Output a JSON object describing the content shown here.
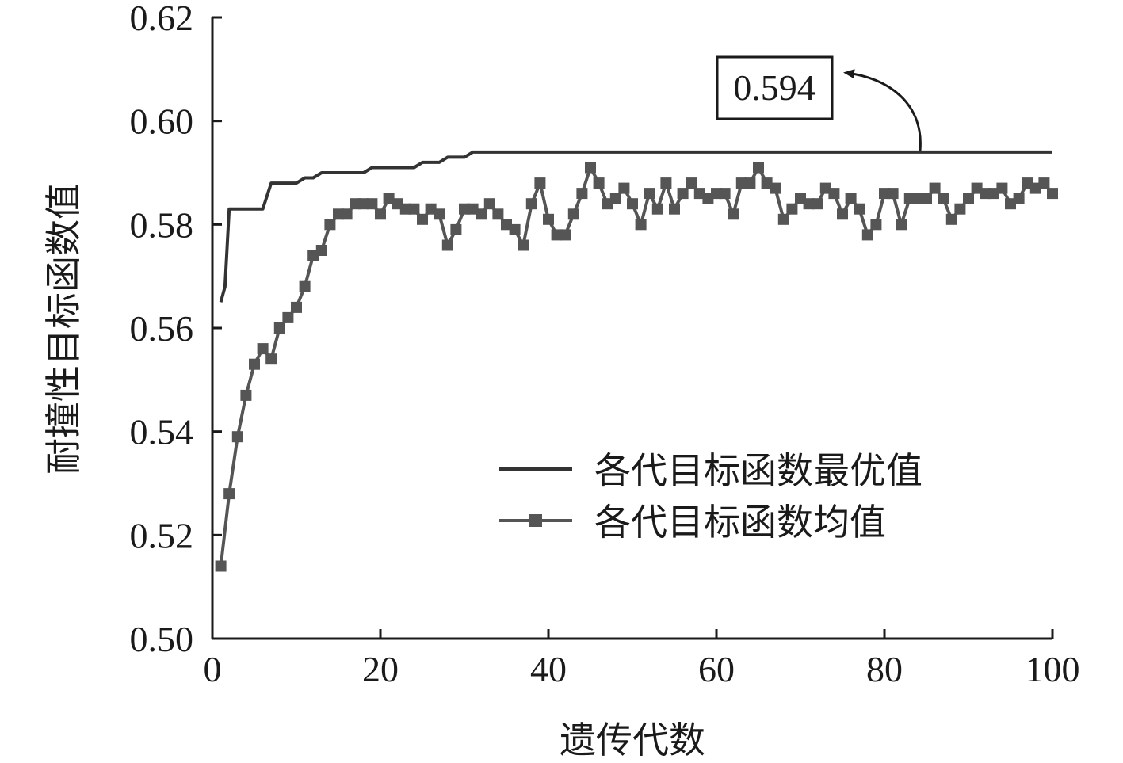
{
  "chart_data": {
    "type": "line",
    "xlabel": "遗传代数",
    "ylabel": "耐撞性目标函数值",
    "xlim": [
      0,
      100
    ],
    "ylim": [
      0.5,
      0.62
    ],
    "xticks": [
      "0",
      "20",
      "40",
      "60",
      "80",
      "100"
    ],
    "yticks": [
      "0.50",
      "0.52",
      "0.54",
      "0.56",
      "0.58",
      "0.60",
      "0.62"
    ],
    "grid": false,
    "legend_position": "lower-right",
    "colors": {
      "best": "#333333",
      "mean": "#555555"
    },
    "series": [
      {
        "name": "各代目标函数最优值",
        "marker": "none",
        "x": [
          1,
          1.5,
          2,
          3,
          4,
          5,
          6,
          7,
          8,
          9,
          10,
          11,
          12,
          13,
          14,
          15,
          16,
          17,
          18,
          19,
          20,
          21,
          22,
          23,
          24,
          25,
          26,
          27,
          28,
          29,
          30,
          31,
          35,
          40,
          50,
          60,
          70,
          80,
          90,
          100
        ],
        "values": [
          0.565,
          0.568,
          0.583,
          0.583,
          0.583,
          0.583,
          0.583,
          0.588,
          0.588,
          0.588,
          0.588,
          0.589,
          0.589,
          0.59,
          0.59,
          0.59,
          0.59,
          0.59,
          0.59,
          0.591,
          0.591,
          0.591,
          0.591,
          0.591,
          0.591,
          0.592,
          0.592,
          0.592,
          0.593,
          0.593,
          0.593,
          0.594,
          0.594,
          0.594,
          0.594,
          0.594,
          0.594,
          0.594,
          0.594,
          0.594
        ]
      },
      {
        "name": "各代目标函数均值",
        "marker": "square",
        "x": [
          1,
          2,
          3,
          4,
          5,
          6,
          7,
          8,
          9,
          10,
          11,
          12,
          13,
          14,
          15,
          16,
          17,
          18,
          19,
          20,
          21,
          22,
          23,
          24,
          25,
          26,
          27,
          28,
          29,
          30,
          31,
          32,
          33,
          34,
          35,
          36,
          37,
          38,
          39,
          40,
          41,
          42,
          43,
          44,
          45,
          46,
          47,
          48,
          49,
          50,
          51,
          52,
          53,
          54,
          55,
          56,
          57,
          58,
          59,
          60,
          61,
          62,
          63,
          64,
          65,
          66,
          67,
          68,
          69,
          70,
          71,
          72,
          73,
          74,
          75,
          76,
          77,
          78,
          79,
          80,
          81,
          82,
          83,
          84,
          85,
          86,
          87,
          88,
          89,
          90,
          91,
          92,
          93,
          94,
          95,
          96,
          97,
          98,
          99,
          100
        ],
        "values": [
          0.514,
          0.528,
          0.539,
          0.547,
          0.553,
          0.556,
          0.554,
          0.56,
          0.562,
          0.564,
          0.568,
          0.574,
          0.575,
          0.58,
          0.582,
          0.582,
          0.584,
          0.584,
          0.584,
          0.582,
          0.585,
          0.584,
          0.583,
          0.583,
          0.581,
          0.583,
          0.582,
          0.576,
          0.579,
          0.583,
          0.583,
          0.582,
          0.584,
          0.582,
          0.58,
          0.579,
          0.576,
          0.584,
          0.588,
          0.581,
          0.578,
          0.578,
          0.582,
          0.586,
          0.591,
          0.588,
          0.584,
          0.585,
          0.587,
          0.584,
          0.58,
          0.586,
          0.583,
          0.588,
          0.583,
          0.586,
          0.588,
          0.586,
          0.585,
          0.586,
          0.586,
          0.582,
          0.588,
          0.588,
          0.591,
          0.588,
          0.587,
          0.581,
          0.583,
          0.585,
          0.584,
          0.584,
          0.587,
          0.586,
          0.582,
          0.585,
          0.583,
          0.578,
          0.58,
          0.586,
          0.586,
          0.58,
          0.585,
          0.585,
          0.585,
          0.587,
          0.585,
          0.581,
          0.583,
          0.585,
          0.587,
          0.586,
          0.586,
          0.587,
          0.584,
          0.585,
          0.588,
          0.587,
          0.588,
          0.586
        ]
      }
    ],
    "annotation": {
      "text": "0.594",
      "x": 85,
      "y": 0.594
    }
  }
}
